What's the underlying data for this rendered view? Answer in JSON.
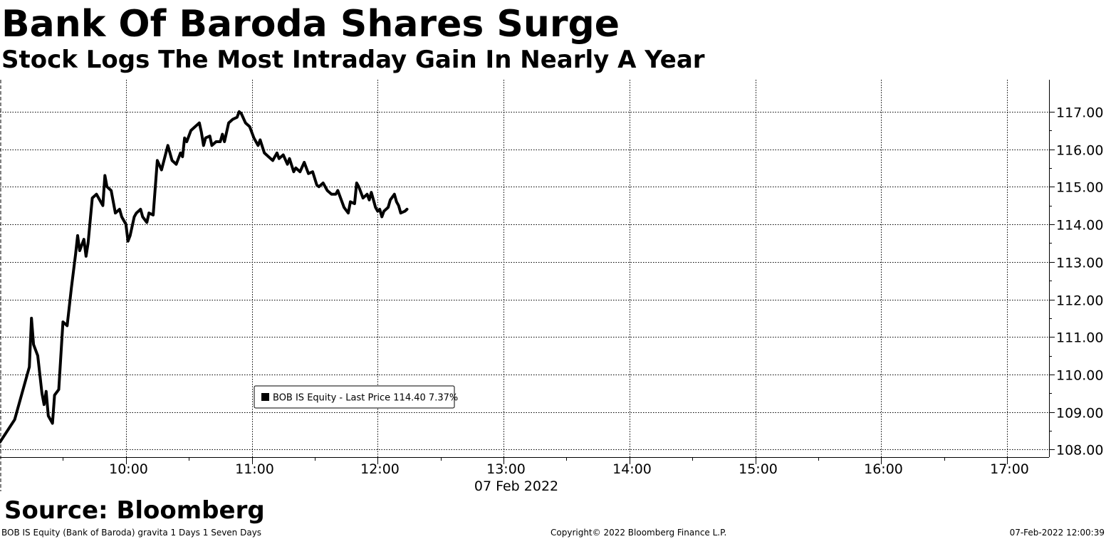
{
  "header": {
    "title": "Bank Of Baroda Shares Surge",
    "subtitle": "Stock Logs The Most Intraday Gain In Nearly A Year"
  },
  "footer": {
    "source": "Source: Bloomberg",
    "security_info": "BOB IS Equity (Bank of Baroda) gravita 1 Days 1 Seven Days",
    "copyright": "Copyright© 2022 Bloomberg Finance L.P.",
    "timestamp": "07-Feb-2022 12:00:39"
  },
  "colors": {
    "line": "#000000",
    "grid": "#000000",
    "background": "#ffffff"
  },
  "chart_data": {
    "type": "line",
    "title": "Bank Of Baroda Shares Surge",
    "subtitle": "Stock Logs The Most Intraday Gain In Nearly A Year",
    "xlabel": "07 Feb 2022",
    "ylabel": "",
    "x_range": [
      "09:00",
      "17:20"
    ],
    "ylim": [
      107.8,
      117.85
    ],
    "x_ticks": [
      "10:00",
      "11:00",
      "12:00",
      "13:00",
      "14:00",
      "15:00",
      "16:00",
      "17:00"
    ],
    "y_ticks": [
      "108.00",
      "109.00",
      "110.00",
      "111.00",
      "112.00",
      "113.00",
      "114.00",
      "115.00",
      "116.00",
      "117.00"
    ],
    "grid": true,
    "legend_position": "bottom-center",
    "y_axis_side": "right",
    "series": [
      {
        "name": "BOB IS Equity - Last Price 114.40  7.37%",
        "legend_text": "BOB IS Equity - Last Price 114.40  7.37%",
        "color": "#000000",
        "points": [
          [
            "09:00",
            108.2
          ],
          [
            "09:07",
            108.8
          ],
          [
            "09:14",
            110.2
          ],
          [
            "09:15",
            111.5
          ],
          [
            "09:16",
            110.8
          ],
          [
            "09:18",
            110.5
          ],
          [
            "09:20",
            109.5
          ],
          [
            "09:21",
            109.2
          ],
          [
            "09:22",
            109.55
          ],
          [
            "09:23",
            108.9
          ],
          [
            "09:25",
            108.7
          ],
          [
            "09:26",
            109.45
          ],
          [
            "09:28",
            109.6
          ],
          [
            "09:30",
            111.4
          ],
          [
            "09:32",
            111.3
          ],
          [
            "09:34",
            112.3
          ],
          [
            "09:36",
            113.2
          ],
          [
            "09:37",
            113.7
          ],
          [
            "09:38",
            113.3
          ],
          [
            "09:40",
            113.6
          ],
          [
            "09:41",
            113.15
          ],
          [
            "09:42",
            113.5
          ],
          [
            "09:44",
            114.7
          ],
          [
            "09:46",
            114.8
          ],
          [
            "09:48",
            114.6
          ],
          [
            "09:49",
            114.5
          ],
          [
            "09:50",
            115.3
          ],
          [
            "09:51",
            115.0
          ],
          [
            "09:53",
            114.9
          ],
          [
            "09:55",
            114.3
          ],
          [
            "09:57",
            114.4
          ],
          [
            "09:58",
            114.2
          ],
          [
            "10:00",
            114.0
          ],
          [
            "10:01",
            113.55
          ],
          [
            "10:02",
            113.7
          ],
          [
            "10:04",
            114.2
          ],
          [
            "10:05",
            114.3
          ],
          [
            "10:07",
            114.4
          ],
          [
            "10:08",
            114.2
          ],
          [
            "10:10",
            114.05
          ],
          [
            "10:11",
            114.3
          ],
          [
            "10:13",
            114.25
          ],
          [
            "10:15",
            115.7
          ],
          [
            "10:17",
            115.45
          ],
          [
            "10:20",
            116.1
          ],
          [
            "10:22",
            115.7
          ],
          [
            "10:24",
            115.6
          ],
          [
            "10:26",
            115.9
          ],
          [
            "10:27",
            115.8
          ],
          [
            "10:28",
            116.3
          ],
          [
            "10:29",
            116.2
          ],
          [
            "10:31",
            116.5
          ],
          [
            "10:33",
            116.6
          ],
          [
            "10:35",
            116.7
          ],
          [
            "10:36",
            116.45
          ],
          [
            "10:37",
            116.1
          ],
          [
            "10:38",
            116.3
          ],
          [
            "10:40",
            116.35
          ],
          [
            "10:41",
            116.1
          ],
          [
            "10:43",
            116.2
          ],
          [
            "10:45",
            116.2
          ],
          [
            "10:46",
            116.4
          ],
          [
            "10:47",
            116.2
          ],
          [
            "10:49",
            116.7
          ],
          [
            "10:51",
            116.8
          ],
          [
            "10:53",
            116.85
          ],
          [
            "10:54",
            117.0
          ],
          [
            "10:55",
            116.95
          ],
          [
            "10:57",
            116.7
          ],
          [
            "10:59",
            116.6
          ],
          [
            "11:01",
            116.3
          ],
          [
            "11:03",
            116.1
          ],
          [
            "11:04",
            116.25
          ],
          [
            "11:06",
            115.9
          ],
          [
            "11:08",
            115.8
          ],
          [
            "11:10",
            115.7
          ],
          [
            "11:12",
            115.9
          ],
          [
            "11:13",
            115.75
          ],
          [
            "11:15",
            115.85
          ],
          [
            "11:17",
            115.6
          ],
          [
            "11:18",
            115.75
          ],
          [
            "11:20",
            115.4
          ],
          [
            "11:21",
            115.5
          ],
          [
            "11:23",
            115.4
          ],
          [
            "11:25",
            115.65
          ],
          [
            "11:27",
            115.35
          ],
          [
            "11:29",
            115.4
          ],
          [
            "11:31",
            115.05
          ],
          [
            "11:32",
            115.0
          ],
          [
            "11:34",
            115.1
          ],
          [
            "11:36",
            114.9
          ],
          [
            "11:38",
            114.8
          ],
          [
            "11:40",
            114.8
          ],
          [
            "11:41",
            114.9
          ],
          [
            "11:43",
            114.6
          ],
          [
            "11:44",
            114.45
          ],
          [
            "11:46",
            114.3
          ],
          [
            "11:47",
            114.6
          ],
          [
            "11:49",
            114.55
          ],
          [
            "11:50",
            115.1
          ],
          [
            "11:51",
            115.0
          ],
          [
            "11:53",
            114.7
          ],
          [
            "11:55",
            114.8
          ],
          [
            "11:56",
            114.65
          ],
          [
            "11:57",
            114.85
          ],
          [
            "11:58",
            114.65
          ],
          [
            "11:59",
            114.45
          ],
          [
            "12:00",
            114.35
          ],
          [
            "12:01",
            114.4
          ],
          [
            "12:02",
            114.2
          ],
          [
            "12:03",
            114.35
          ],
          [
            "12:05",
            114.45
          ],
          [
            "12:06",
            114.65
          ],
          [
            "12:08",
            114.8
          ],
          [
            "12:09",
            114.6
          ],
          [
            "12:10",
            114.5
          ],
          [
            "12:11",
            114.3
          ],
          [
            "12:13",
            114.35
          ],
          [
            "12:14",
            114.4
          ]
        ]
      }
    ]
  }
}
